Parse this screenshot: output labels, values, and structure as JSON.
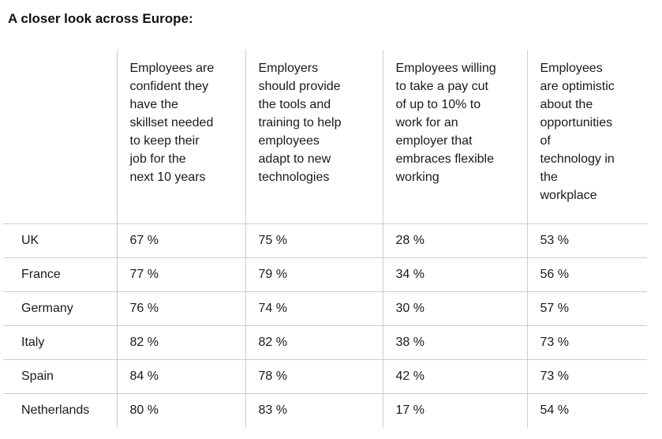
{
  "page": {
    "title": "A closer look across Europe:"
  },
  "colors": {
    "background": "#ffffff",
    "text": "#1a1a1a",
    "grid_lines": "#cccccc"
  },
  "table": {
    "columns": [
      "Employees are\nconfident they\nhave the\nskillset needed\nto keep their\njob for the\nnext 10 years",
      "Employers\nshould provide\nthe tools and\ntraining to help\nemployees\nadapt to new\ntechnologies",
      "Employees willing\nto take a pay cut\nof up to 10% to\nwork for an\nemployer that\nembraces flexible\nworking",
      "Employees\nare optimistic\nabout the\nopportunities\nof\ntechnology in\nthe\nworkplace"
    ],
    "rows": [
      {
        "country": "UK",
        "values": [
          "67 %",
          "75 %",
          "28 %",
          "53 %"
        ]
      },
      {
        "country": "France",
        "values": [
          "77 %",
          "79 %",
          "34 %",
          "56 %"
        ]
      },
      {
        "country": "Germany",
        "values": [
          "76 %",
          "74 %",
          "30 %",
          "57 %"
        ]
      },
      {
        "country": "Italy",
        "values": [
          "82 %",
          "82 %",
          "38 %",
          "73 %"
        ]
      },
      {
        "country": "Spain",
        "values": [
          "84 %",
          "78 %",
          "42 %",
          "73 %"
        ]
      },
      {
        "country": "Netherlands",
        "values": [
          "80 %",
          "83 %",
          "17 %",
          "54 %"
        ]
      }
    ]
  },
  "chart_data": {
    "type": "table",
    "title": "A closer look across Europe:",
    "categories": [
      "UK",
      "France",
      "Germany",
      "Italy",
      "Spain",
      "Netherlands"
    ],
    "unit": "%",
    "series": [
      {
        "name": "Employees are confident they have the skillset needed to keep their job for the next 10 years",
        "values": [
          67,
          77,
          76,
          82,
          84,
          80
        ]
      },
      {
        "name": "Employers should provide the tools and training to help employees adapt to new technologies",
        "values": [
          75,
          79,
          74,
          82,
          78,
          83
        ]
      },
      {
        "name": "Employees willing to take a pay cut of up to 10% to work for an employer that embraces flexible working",
        "values": [
          28,
          34,
          30,
          38,
          42,
          17
        ]
      },
      {
        "name": "Employees are optimistic about the opportunities of technology in the workplace",
        "values": [
          53,
          56,
          57,
          73,
          73,
          54
        ]
      }
    ]
  }
}
